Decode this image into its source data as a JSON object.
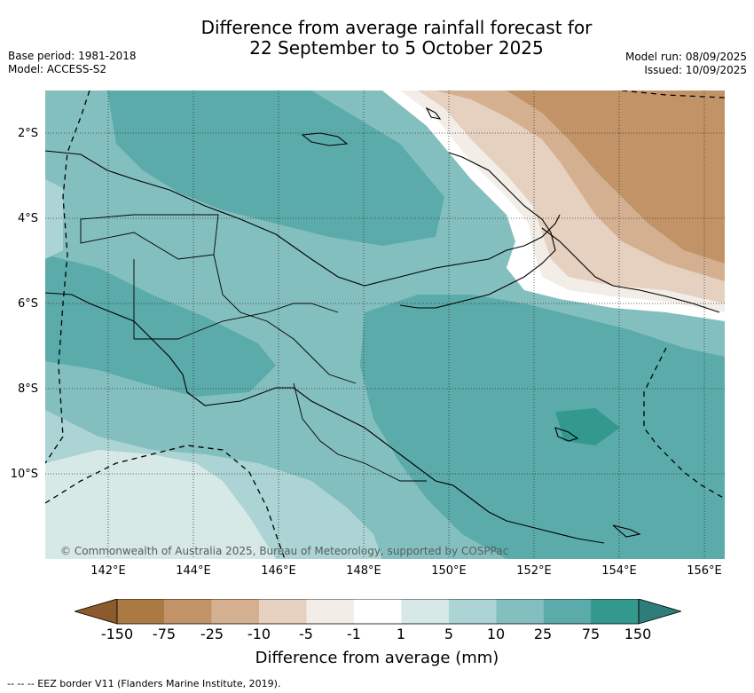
{
  "title": {
    "line1": "Difference from average rainfall forecast for",
    "line2": "22 September to 5 October 2025"
  },
  "meta": {
    "base_period": "Base period: 1981-2018",
    "model": "Model: ACCESS-S2",
    "model_run": "Model run: 08/09/2025",
    "issued": "Issued: 10/09/2025"
  },
  "map": {
    "latitude_labels": [
      "2°S",
      "4°S",
      "6°S",
      "8°S",
      "10°S"
    ],
    "longitude_labels": [
      "142°E",
      "144°E",
      "146°E",
      "148°E",
      "150°E",
      "152°E",
      "154°E",
      "156°E"
    ],
    "copyright": "© Commonwealth of Australia 2025, Bureau of Meteorology, supported by COSPPac"
  },
  "colorbar": {
    "title": "Difference from average (mm)",
    "ticks": [
      "-150",
      "-75",
      "-25",
      "-10",
      "-5",
      "-1",
      "1",
      "5",
      "10",
      "25",
      "75",
      "150"
    ],
    "colors": [
      "#8d5b2b",
      "#ab7a44",
      "#c29366",
      "#d4b090",
      "#e6d0bf",
      "#f3ede8",
      "#ffffff",
      "#d6e9e7",
      "#acd4d4",
      "#84bfbf",
      "#5aabaa",
      "#33998f",
      "#2f7d78"
    ]
  },
  "footnote": "--  --  -- EEZ border V11 (Flanders Marine Institute, 2019)."
}
